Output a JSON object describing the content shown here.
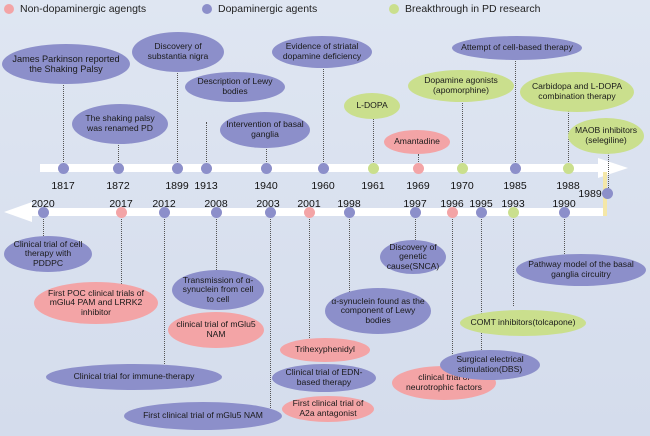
{
  "colors": {
    "dopaminergic": "#8c8fca",
    "non_dopaminergic": "#f3a4a6",
    "breakthrough": "#cadf8d"
  },
  "legend": [
    {
      "label": "Non-dopaminergic agengts",
      "type": "non"
    },
    {
      "label": "Dopaminergic agents",
      "type": "dop"
    },
    {
      "label": "Breakthrough in PD research",
      "type": "bre"
    }
  ],
  "top_years": [
    "1817",
    "1872",
    "1899",
    "1913",
    "1940",
    "1960",
    "1961",
    "1969",
    "1970",
    "1985",
    "1988",
    "1989"
  ],
  "bottom_years": [
    "2020",
    "2017",
    "2012",
    "2008",
    "2003",
    "2001",
    "1998",
    "1997",
    "1996",
    "1995",
    "1993",
    "1990"
  ],
  "events": [
    {
      "year": "1817",
      "type": "dop",
      "text": "James Parkinson reported the Shaking Palsy"
    },
    {
      "year": "1872",
      "type": "dop",
      "text": "The shaking palsy was renamed PD"
    },
    {
      "year": "1899",
      "type": "dop",
      "text": "Discovery of substantia nigra"
    },
    {
      "year": "1913",
      "type": "dop",
      "text": "Description of Lewy bodies"
    },
    {
      "year": "1940",
      "type": "dop",
      "text": "Intervention of basal ganglia"
    },
    {
      "year": "1960",
      "type": "dop",
      "text": "Evidence of striatal dopamine deficiency"
    },
    {
      "year": "1961",
      "type": "bre",
      "text": "L-DOPA"
    },
    {
      "year": "1969",
      "type": "non",
      "text": "Amantadine"
    },
    {
      "year": "1970",
      "type": "bre",
      "text": "Dopamine agonists (apomorphine)"
    },
    {
      "year": "1985",
      "type": "dop",
      "text": "Attempt of cell-based therapy"
    },
    {
      "year": "1988",
      "type": "bre",
      "text": "Carbidopa and L-DOPA combination therapy"
    },
    {
      "year": "1989",
      "type": "bre",
      "text": "MAOB inhibitors (selegiline)"
    },
    {
      "year": "2020",
      "type": "dop",
      "text": "Clinical trial of cell therapy with PDDPC"
    },
    {
      "year": "2017",
      "type": "non",
      "text": "First POC clinical trials of mGlu4 PAM and LRRK2 inhibitor"
    },
    {
      "year": "2012",
      "type": "dop",
      "text": "Clinical trial for immune-therapy"
    },
    {
      "year": "2008",
      "type": "dop",
      "text": "Transmission of α-synuclein from cell to cell"
    },
    {
      "year": "2008",
      "type": "non",
      "text": "clinical trial of mGlu5 NAM"
    },
    {
      "year": "2003",
      "type": "dop",
      "text": "First clinical trial of mGlu5 NAM"
    },
    {
      "year": "2001",
      "type": "non",
      "text": "Trihexyphenidyl"
    },
    {
      "year": "1998",
      "type": "dop",
      "text": "α-synuclein found as the component of Lewy bodies"
    },
    {
      "year": "1998",
      "type": "dop",
      "text": "Clinical trial of EDN-based therapy"
    },
    {
      "year": "2001",
      "type": "non",
      "text": "First clinical trial of A2a antagonist"
    },
    {
      "year": "1997",
      "type": "dop",
      "text": "Discovery of genetic cause(SNCA)"
    },
    {
      "year": "1996",
      "type": "non",
      "text": "clinical trial of neurotrophic factors"
    },
    {
      "year": "1995",
      "type": "dop",
      "text": "Surgical electrical stimulation(DBS)"
    },
    {
      "year": "1993",
      "type": "bre",
      "text": "COMT inhibitors(tolcapone)"
    },
    {
      "year": "1990",
      "type": "dop",
      "text": "Pathway model of the basal ganglia circuitry"
    }
  ]
}
